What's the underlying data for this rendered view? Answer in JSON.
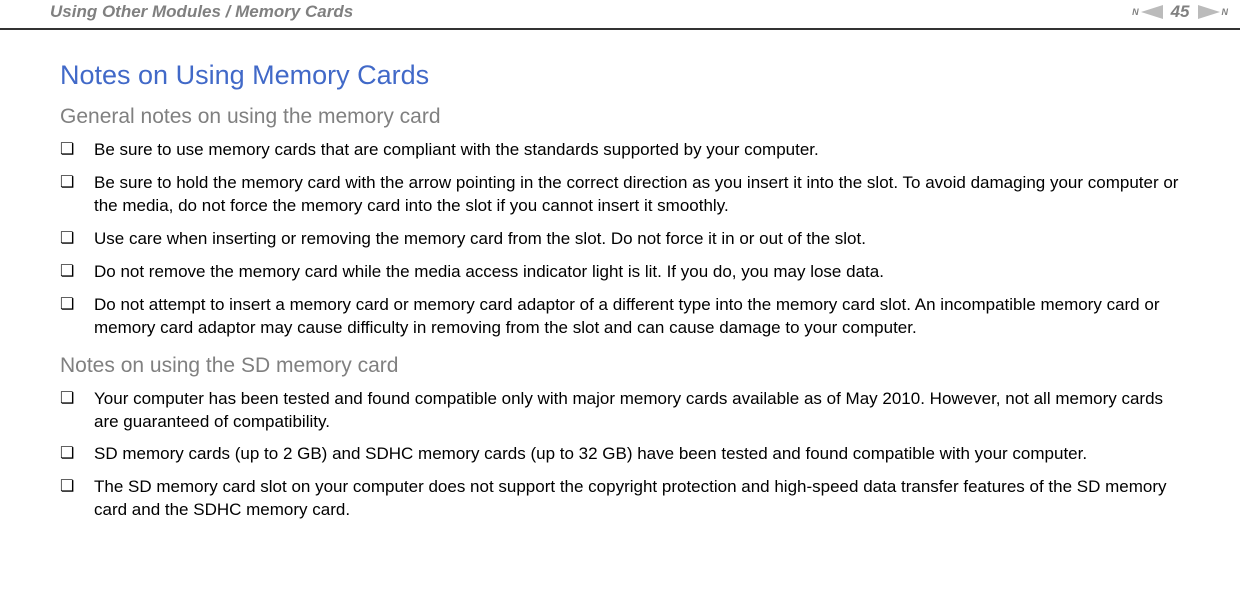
{
  "header": {
    "breadcrumb": "Using Other Modules / Memory Cards",
    "page_number": "45",
    "nav_letter": "N"
  },
  "main": {
    "title": "Notes on Using Memory Cards",
    "title_color": "#4169c8",
    "section1": {
      "heading": "General notes on using the memory card",
      "items": [
        "Be sure to use memory cards that are compliant with the standards supported by your computer.",
        "Be sure to hold the memory card with the arrow pointing in the correct direction as you insert it into the slot. To avoid damaging your computer or the media, do not force the memory card into the slot if you cannot insert it smoothly.",
        "Use care when inserting or removing the memory card from the slot. Do not force it in or out of the slot.",
        "Do not remove the memory card while the media access indicator light is lit. If you do, you may lose data.",
        "Do not attempt to insert a memory card or memory card adaptor of a different type into the memory card slot. An incompatible memory card or memory card adaptor may cause difficulty in removing from the slot and can cause damage to your computer."
      ]
    },
    "section2": {
      "heading": "Notes on using the SD memory card",
      "items": [
        "Your computer has been tested and found compatible only with major memory cards available as of May 2010. However, not all memory cards are guaranteed of compatibility.",
        "SD memory cards (up to 2 GB) and SDHC memory cards (up to 32 GB) have been tested and found compatible with your computer.",
        "The SD memory card slot on your computer does not support the copyright protection and high-speed data transfer features of the SD memory card and the SDHC memory card."
      ]
    }
  }
}
